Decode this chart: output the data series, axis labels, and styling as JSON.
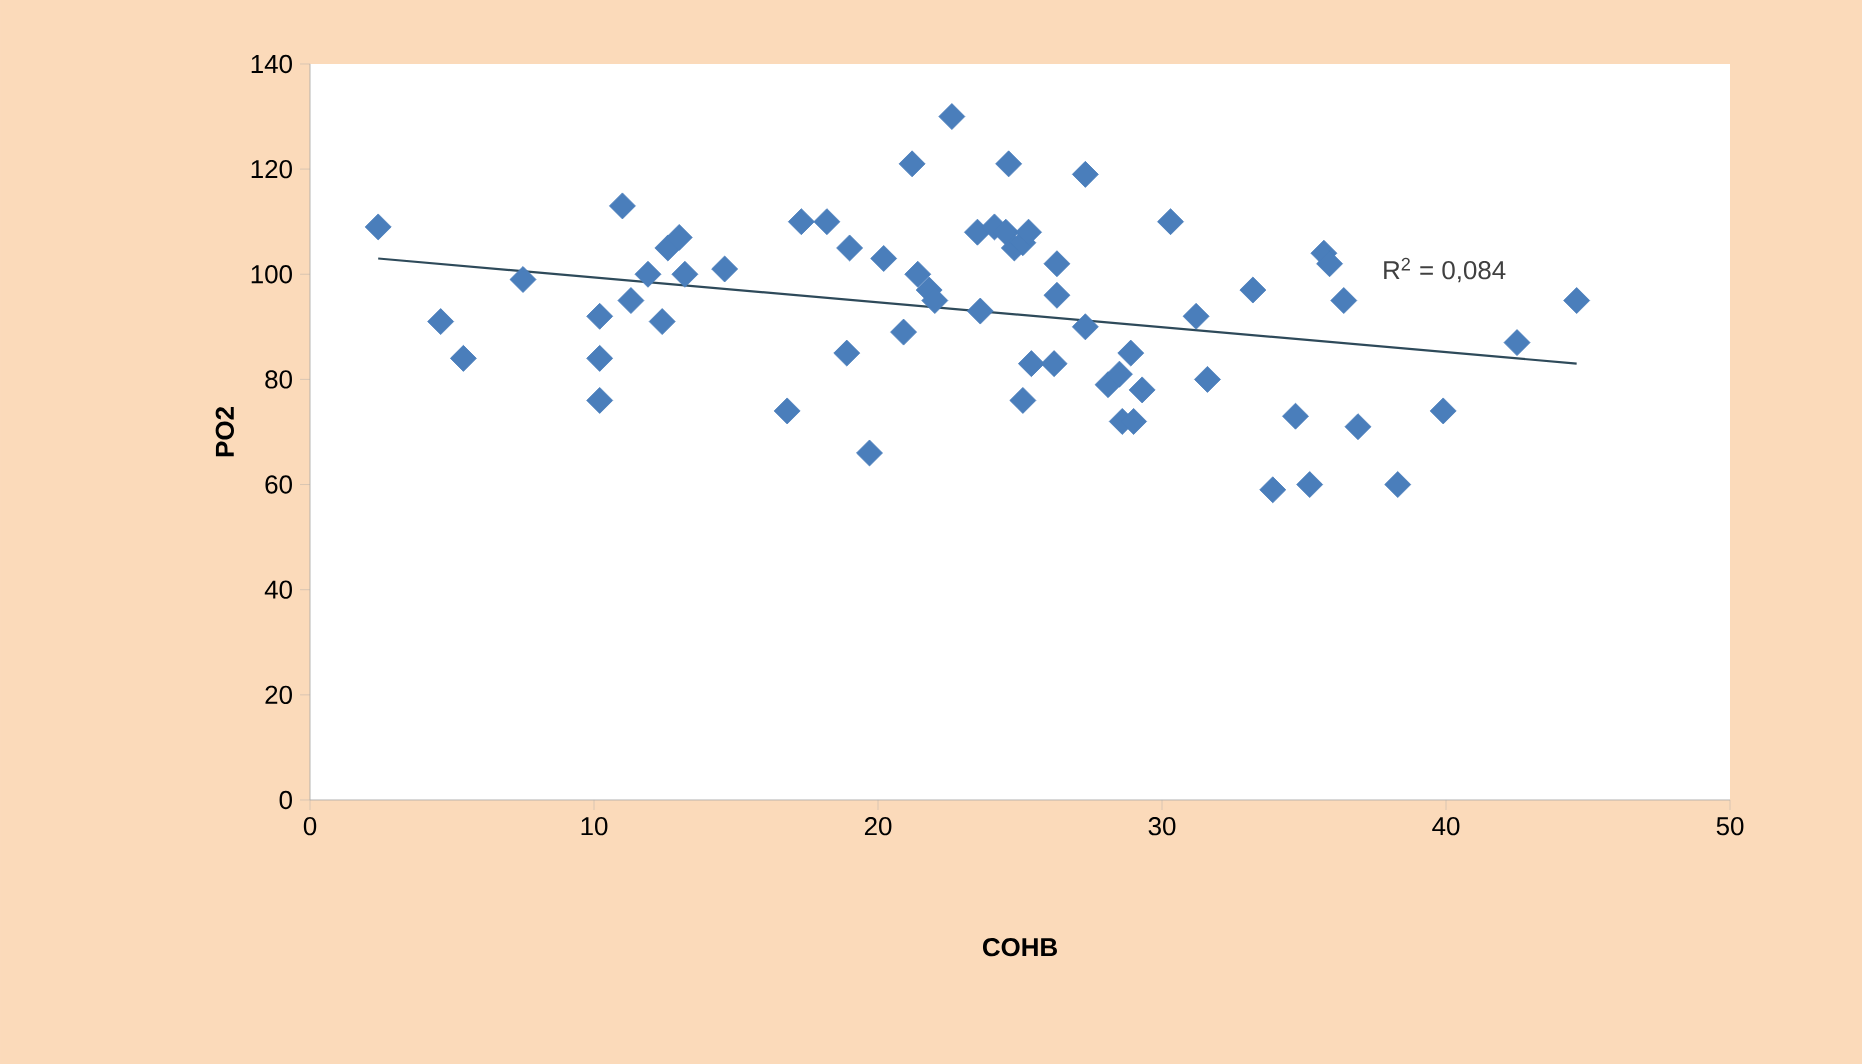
{
  "chart_data": {
    "type": "scatter",
    "xlabel": "COHB",
    "ylabel": "PO2",
    "xlim": [
      0,
      50
    ],
    "ylim": [
      0,
      140
    ],
    "xticks": [
      0,
      10,
      20,
      30,
      40,
      50
    ],
    "yticks": [
      0,
      20,
      40,
      60,
      80,
      100,
      120,
      140
    ],
    "grid": false,
    "marker": "diamond",
    "series": [
      {
        "color": "#4a7ebb",
        "x": [
          2.4,
          4.6,
          5.4,
          7.5,
          10.2,
          10.2,
          10.2,
          11.0,
          11.3,
          11.9,
          12.4,
          12.6,
          13.0,
          13.2,
          14.6,
          16.8,
          17.3,
          18.2,
          19.0,
          18.9,
          19.7,
          20.2,
          20.9,
          21.2,
          21.4,
          21.8,
          22.0,
          22.6,
          23.5,
          23.6,
          24.1,
          24.5,
          24.6,
          24.8,
          25.1,
          25.1,
          25.3,
          25.4,
          26.2,
          26.3,
          26.3,
          27.3,
          27.3,
          28.1,
          28.5,
          28.9,
          28.6,
          29.0,
          29.3,
          30.3,
          31.2,
          31.6,
          33.2,
          33.9,
          34.7,
          35.2,
          35.7,
          35.9,
          36.4,
          36.9,
          38.3,
          39.9,
          42.5,
          44.6
        ],
        "values": [
          109,
          91,
          84,
          99,
          92,
          84,
          76,
          113,
          95,
          100,
          91,
          105,
          107,
          100,
          101,
          74,
          110,
          110,
          105,
          85,
          66,
          103,
          89,
          121,
          100,
          97,
          95,
          130,
          108,
          93,
          109,
          108,
          121,
          105,
          106,
          76,
          108,
          83,
          83,
          102,
          96,
          90,
          119,
          79,
          81,
          85,
          72,
          72,
          78,
          110,
          92,
          80,
          97,
          59,
          73,
          60,
          104,
          102,
          95,
          71,
          60,
          74,
          87,
          95
        ]
      },
      {
        "type": "line",
        "marker": "none",
        "color": "#2e4a5a",
        "x": [
          2.4,
          44.6
        ],
        "values": [
          103,
          83
        ]
      }
    ],
    "annotations": [
      "R$^{2}$ = 0,084"
    ]
  }
}
